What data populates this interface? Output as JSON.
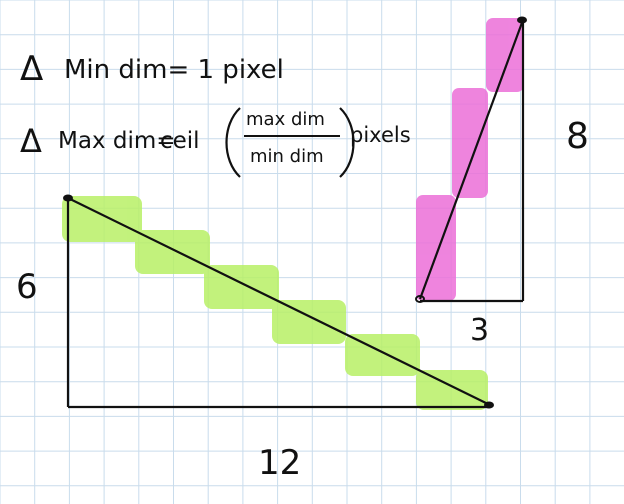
{
  "formulas": {
    "line1": {
      "delta": "Δ",
      "text": "Min dim= 1 pixel"
    },
    "line2": {
      "delta": "Δ",
      "lhs": "Max dim=",
      "func": "ceil",
      "numerator": "max dim",
      "denominator": "min dim",
      "unit": "pixels"
    }
  },
  "diagram_left": {
    "width_label": "12",
    "height_label": "6",
    "highlight_color": "#b8f066"
  },
  "diagram_right": {
    "width_label": "3",
    "height_label": "8",
    "highlight_color": "#ec6fd8"
  },
  "colors": {
    "grid": "#c9dcec",
    "ink": "#111111",
    "paper": "#ffffff"
  }
}
